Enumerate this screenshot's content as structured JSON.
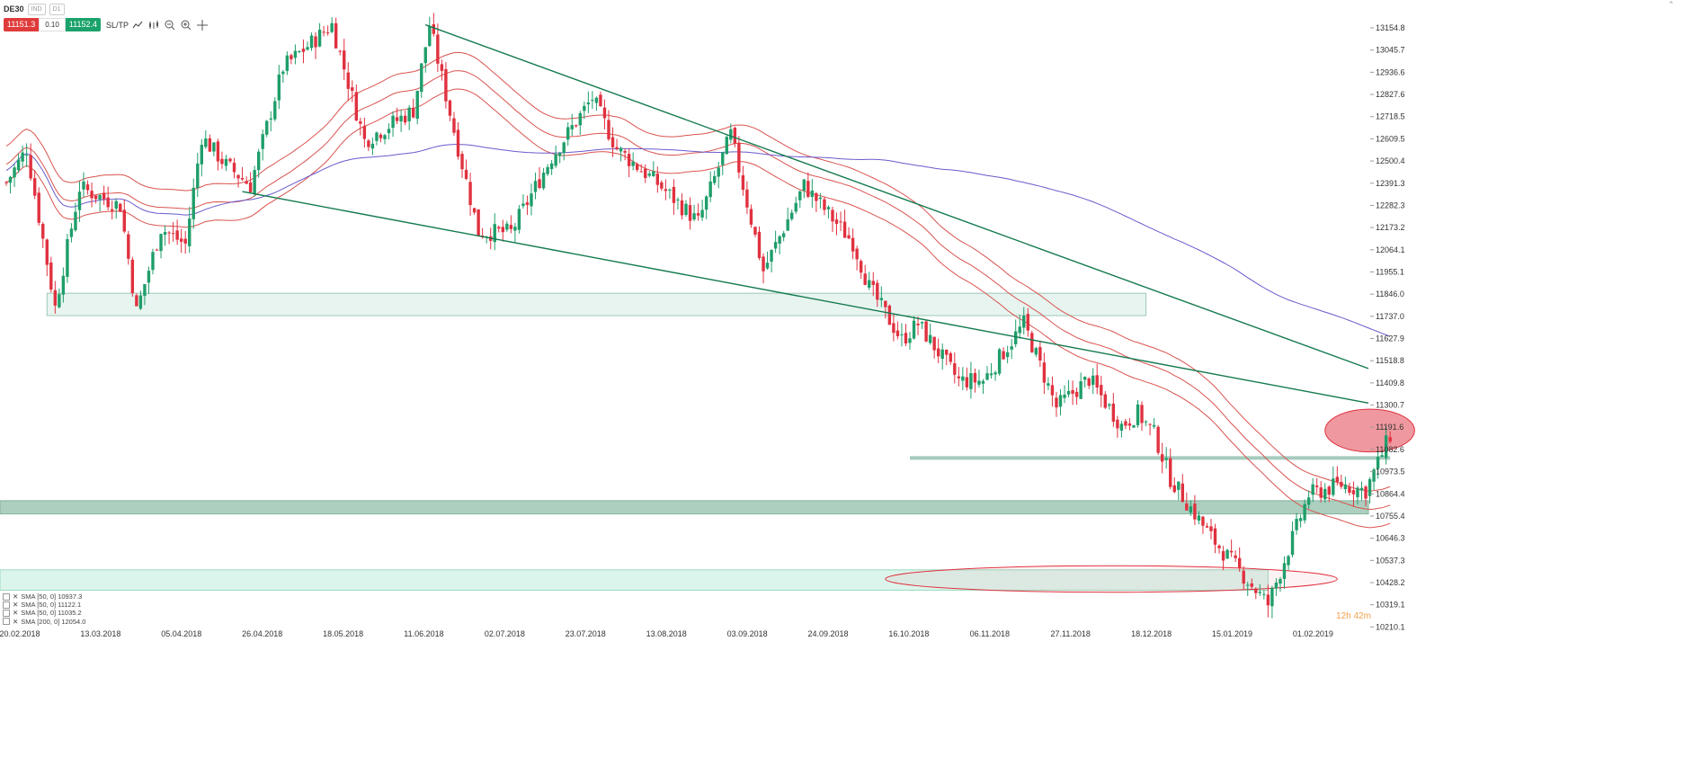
{
  "toolbar": {
    "symbol": "DE30",
    "market_dropdown": "IND",
    "timeframe": "D1",
    "sell_price": "11151.3",
    "volume": "0.10",
    "buy_price": "11152.4",
    "sltp_label": "SL/TP",
    "icons": [
      "line-tool-icon",
      "chart-type-icon",
      "zoom-out-icon",
      "zoom-in-icon",
      "crosshair-icon"
    ]
  },
  "legend": [
    {
      "label": "SMA [50, 0] 10937.3"
    },
    {
      "label": "SMA [50, 0] 11122.1"
    },
    {
      "label": "SMA [50, 0] 11035.2"
    },
    {
      "label": "SMA [200, 0] 12054.0"
    }
  ],
  "timer": "12h 42m",
  "colors": {
    "bull": "#1f9e6a",
    "bear": "#e0313f",
    "sma_envelope": "#d9534f",
    "sma200": "#6a5acd",
    "trendline": "#137a4f"
  },
  "chart_data": {
    "type": "candlestick",
    "symbol": "DE30",
    "timeframe": "D1",
    "y_ticks": [
      13154.8,
      13045.7,
      12936.6,
      12827.6,
      12718.5,
      12609.5,
      12500.4,
      12391.3,
      12282.3,
      12173.2,
      12064.1,
      11955.1,
      11846.0,
      11737.0,
      11627.9,
      11518.8,
      11409.8,
      11300.7,
      11191.6,
      11082.6,
      10973.5,
      10864.4,
      10755.4,
      10646.3,
      10537.3,
      10428.2,
      10319.1,
      10210.1
    ],
    "x_ticks": [
      "20.02.2018",
      "13.03.2018",
      "05.04.2018",
      "26.04.2018",
      "18.05.2018",
      "11.06.2018",
      "02.07.2018",
      "23.07.2018",
      "13.08.2018",
      "03.09.2018",
      "24.09.2018",
      "16.10.2018",
      "06.11.2018",
      "27.11.2018",
      "18.12.2018",
      "15.01.2019",
      "01.02.2019"
    ],
    "ylim": [
      10210.1,
      13154.8
    ],
    "current_price": 11151.3,
    "key_values": {
      "first_close": 12394,
      "year_high": 13170,
      "support_zone_upper": [
        11740,
        11850
      ],
      "support_zone_mid": [
        10765,
        10830
      ],
      "support_zone_low": [
        10390,
        10490
      ],
      "resistance_line": 11040,
      "december_low": 10280,
      "last_close": 11152
    }
  }
}
